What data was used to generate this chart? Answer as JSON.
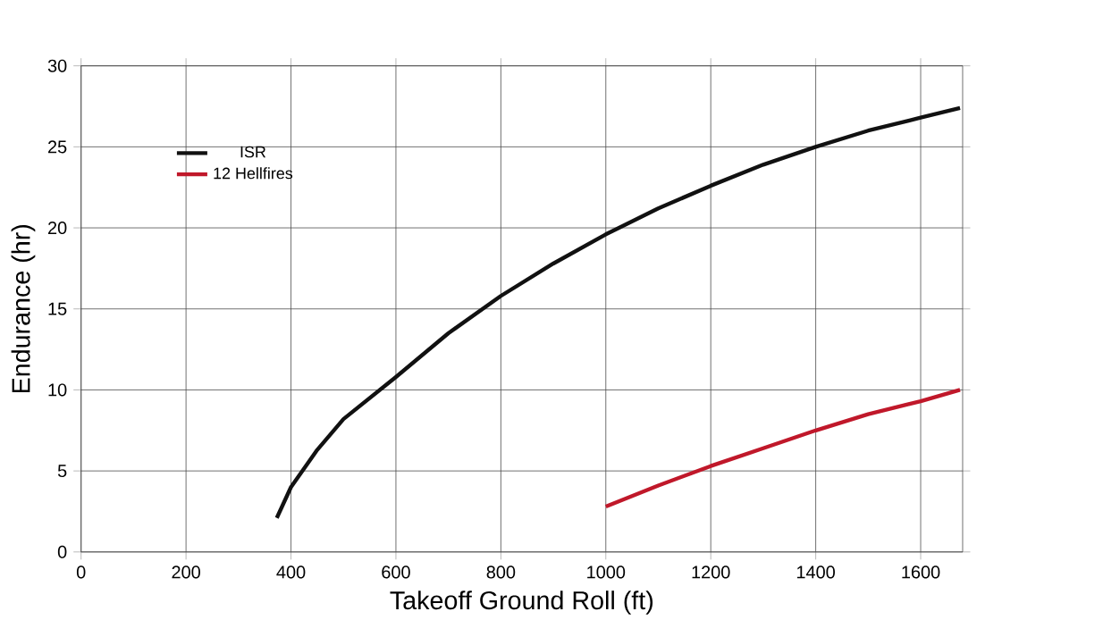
{
  "chart_data": {
    "type": "line",
    "xlabel": "Takeoff Ground Roll (ft)",
    "ylabel": "Endurance (hr)",
    "xlim": [
      0,
      1680
    ],
    "ylim": [
      0,
      30
    ],
    "xticks": [
      0,
      200,
      400,
      600,
      800,
      1000,
      1200,
      1400,
      1600
    ],
    "yticks": [
      0,
      5,
      10,
      15,
      20,
      25,
      30
    ],
    "grid": true,
    "legend": "top left",
    "series": [
      {
        "name": "ISR",
        "color": "#111111",
        "x": [
          373,
          400,
          450,
          500,
          600,
          700,
          800,
          900,
          1000,
          1100,
          1200,
          1300,
          1400,
          1500,
          1600,
          1675
        ],
        "values": [
          2.1,
          4,
          6.3,
          8.2,
          10.8,
          13.5,
          15.8,
          17.8,
          19.6,
          21.2,
          22.6,
          23.9,
          25,
          26,
          26.8,
          27.4
        ]
      },
      {
        "name": "12 Hellfires",
        "color": "#c0182a",
        "x": [
          1000,
          1100,
          1200,
          1300,
          1400,
          1500,
          1600,
          1675
        ],
        "values": [
          2.8,
          4.1,
          5.3,
          6.4,
          7.5,
          8.5,
          9.3,
          10
        ]
      }
    ]
  }
}
